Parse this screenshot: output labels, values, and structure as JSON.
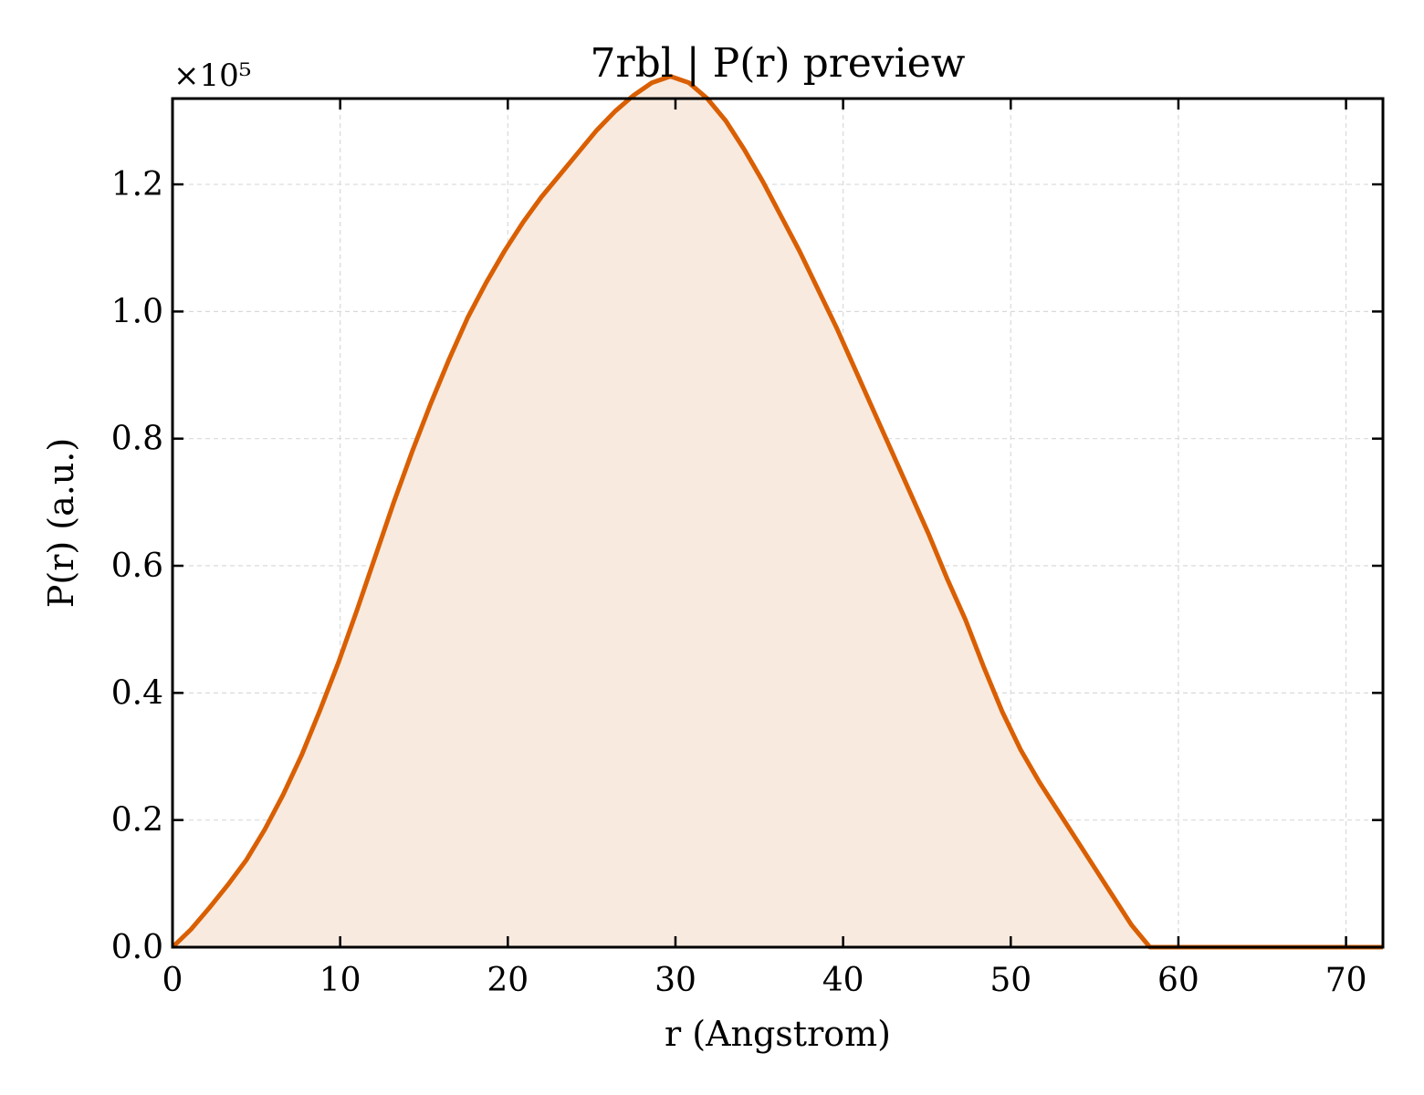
{
  "chart_data": {
    "type": "area",
    "title": "7rbl | P(r) preview",
    "xlabel": "r (Angstrom)",
    "ylabel": "P(r) (a.u.)",
    "y_offset_label": "×10⁵",
    "y_scale_factor": 100000,
    "xlim": [
      0,
      72.2
    ],
    "ylim": [
      0,
      133500
    ],
    "x_ticks": [
      0,
      10,
      20,
      30,
      40,
      50,
      60,
      70
    ],
    "x_tick_labels": [
      "0",
      "10",
      "20",
      "30",
      "40",
      "50",
      "60",
      "70"
    ],
    "y_ticks": [
      0,
      20000,
      40000,
      60000,
      80000,
      100000,
      120000
    ],
    "y_tick_labels": [
      "0.0",
      "0.2",
      "0.4",
      "0.6",
      "0.8",
      "1.0",
      "1.2"
    ],
    "grid": true,
    "colors": {
      "line": "#d95f02",
      "fill": "#f8eadf",
      "grid": "#d9d9d9"
    },
    "series": [
      {
        "x": [
          0,
          1.1,
          2.2,
          3.3,
          4.4,
          5.5,
          6.6,
          7.7,
          8.8,
          9.9,
          11.0,
          12.1,
          13.2,
          14.3,
          15.4,
          16.5,
          17.6,
          18.7,
          19.8,
          20.9,
          22.0,
          23.1,
          24.2,
          25.3,
          26.4,
          27.5,
          28.6,
          29.7,
          30.8,
          31.9,
          33.0,
          34.1,
          35.2,
          36.3,
          37.4,
          38.5,
          39.6,
          40.7,
          41.8,
          42.9,
          44.0,
          45.1,
          46.2,
          47.3,
          48.4,
          49.5,
          50.6,
          51.7,
          52.8,
          53.9,
          55.0,
          56.1,
          57.2,
          58.3,
          59.4,
          60.5,
          61.6,
          62.7,
          63.8,
          64.9,
          66.0,
          67.1,
          68.2,
          69.3,
          70.4,
          71.5,
          72.2
        ],
        "y": [
          0,
          2800,
          6200,
          9800,
          13700,
          18500,
          24000,
          30200,
          37300,
          44800,
          53000,
          61500,
          70000,
          78000,
          85500,
          92500,
          99000,
          104500,
          109500,
          114000,
          118000,
          121500,
          125000,
          128500,
          131500,
          134000,
          136000,
          137000,
          136000,
          133500,
          130000,
          125500,
          120500,
          115000,
          109500,
          103500,
          97500,
          91000,
          84500,
          78000,
          71500,
          65000,
          58000,
          51500,
          44000,
          37000,
          31000,
          26000,
          21500,
          17000,
          12500,
          8000,
          3500,
          0,
          0,
          0,
          0,
          0,
          0,
          0,
          0,
          0,
          0,
          0,
          0,
          0,
          0
        ]
      }
    ]
  }
}
